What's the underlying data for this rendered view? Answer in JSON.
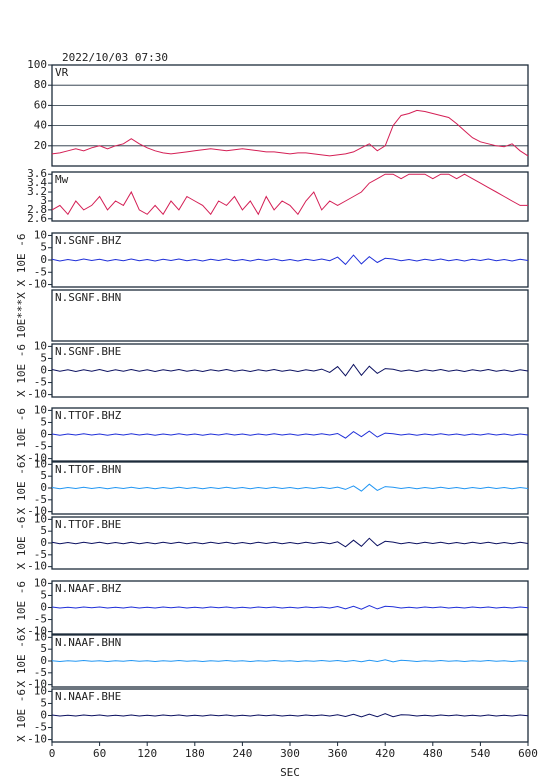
{
  "chart_data": {
    "type": "line",
    "title": "2022/10/03 07:30",
    "xlabel": "SEC",
    "xlim": [
      0,
      600
    ],
    "xticks": [
      0,
      60,
      120,
      180,
      240,
      300,
      360,
      420,
      480,
      540,
      600
    ],
    "x": [
      0,
      10,
      20,
      30,
      40,
      50,
      60,
      70,
      80,
      90,
      100,
      110,
      120,
      130,
      140,
      150,
      160,
      170,
      180,
      190,
      200,
      210,
      220,
      230,
      240,
      250,
      260,
      270,
      280,
      290,
      300,
      310,
      320,
      330,
      340,
      350,
      360,
      370,
      380,
      390,
      400,
      410,
      420,
      430,
      440,
      450,
      460,
      470,
      480,
      490,
      500,
      510,
      520,
      530,
      540,
      550,
      560,
      570,
      580,
      590,
      600
    ],
    "panels": [
      {
        "name": "VR",
        "color": "#d41f55",
        "ylim": [
          0,
          100
        ],
        "yticks": [
          20,
          40,
          60,
          80,
          100
        ],
        "grid": true,
        "values": [
          12,
          13,
          15,
          17,
          15,
          18,
          20,
          17,
          20,
          22,
          27,
          22,
          18,
          15,
          13,
          12,
          13,
          14,
          15,
          16,
          17,
          16,
          15,
          16,
          17,
          16,
          15,
          14,
          14,
          13,
          12,
          13,
          13,
          12,
          11,
          10,
          11,
          12,
          14,
          18,
          22,
          15,
          20,
          40,
          50,
          52,
          55,
          54,
          52,
          50,
          48,
          42,
          35,
          28,
          24,
          22,
          20,
          19,
          22,
          15,
          10
        ]
      },
      {
        "name": "Mw",
        "color": "#d41f55",
        "ylim": [
          2.55,
          3.65
        ],
        "yticks": [
          2.6,
          2.8,
          3.0,
          3.2,
          3.4,
          3.6
        ],
        "grid": false,
        "values": [
          2.8,
          2.9,
          2.7,
          3.0,
          2.8,
          2.9,
          3.1,
          2.8,
          3.0,
          2.9,
          3.2,
          2.8,
          2.7,
          2.9,
          2.7,
          3.0,
          2.8,
          3.1,
          3.0,
          2.9,
          2.7,
          3.0,
          2.9,
          3.1,
          2.8,
          3.0,
          2.7,
          3.1,
          2.8,
          3.0,
          2.9,
          2.7,
          3.0,
          3.2,
          2.8,
          3.0,
          2.9,
          3.0,
          3.1,
          3.2,
          3.4,
          3.5,
          3.6,
          3.6,
          3.5,
          3.6,
          3.6,
          3.6,
          3.5,
          3.6,
          3.6,
          3.5,
          3.6,
          3.5,
          3.4,
          3.3,
          3.2,
          3.1,
          3.0,
          2.9,
          2.9
        ]
      },
      {
        "name": "N.SGNF.BHZ",
        "ylabel": "X 10E -6",
        "color": "#1f2fd8",
        "ylim": [
          -11,
          11
        ],
        "yticks": [
          -10,
          -5,
          0,
          5,
          10
        ],
        "values": [
          0.3,
          -0.4,
          0.2,
          -0.3,
          0.4,
          -0.2,
          0.3,
          -0.4,
          0.2,
          -0.3,
          0.4,
          -0.3,
          0.2,
          -0.4,
          0.3,
          -0.2,
          0.4,
          -0.3,
          0.2,
          -0.4,
          0.3,
          -0.2,
          0.4,
          -0.3,
          0.2,
          -0.4,
          0.3,
          -0.2,
          0.4,
          -0.3,
          0.2,
          -0.4,
          0.3,
          -0.2,
          0.4,
          -0.3,
          1.2,
          -1.8,
          2.0,
          -1.6,
          1.4,
          -1.0,
          0.7,
          0.4,
          -0.3,
          0.2,
          -0.4,
          0.3,
          -0.2,
          0.4,
          -0.3,
          0.2,
          -0.4,
          0.3,
          -0.2,
          0.4,
          -0.3,
          0.2,
          -0.4,
          0.3,
          -0.2
        ]
      },
      {
        "name": "N.SGNF.BHN",
        "ylabel": "10E***X",
        "color": "#1e90ff",
        "ylim": [
          -11,
          11
        ],
        "yticks": []
      },
      {
        "name": "N.SGNF.BHE",
        "ylabel": "X 10E -6",
        "color": "#0b1060",
        "ylim": [
          -11,
          11
        ],
        "yticks": [
          -10,
          -5,
          0,
          5,
          10
        ],
        "values": [
          0.4,
          -0.3,
          0.3,
          -0.4,
          0.3,
          -0.3,
          0.4,
          -0.4,
          0.3,
          -0.3,
          0.4,
          -0.3,
          0.3,
          -0.4,
          0.3,
          -0.2,
          0.4,
          -0.3,
          0.2,
          -0.4,
          0.3,
          -0.2,
          0.4,
          -0.3,
          0.2,
          -0.4,
          0.3,
          -0.2,
          0.4,
          -0.3,
          0.2,
          -0.4,
          0.3,
          -0.2,
          0.6,
          -0.8,
          1.6,
          -2.2,
          2.5,
          -2.0,
          1.8,
          -1.2,
          0.8,
          0.5,
          -0.3,
          0.2,
          -0.4,
          0.3,
          -0.2,
          0.4,
          -0.3,
          0.2,
          -0.4,
          0.3,
          -0.2,
          0.4,
          -0.3,
          0.2,
          -0.4,
          0.3,
          -0.2
        ]
      },
      {
        "name": "N.TTOF.BHZ",
        "ylabel": "X 10E -6",
        "color": "#1f2fd8",
        "ylim": [
          -11,
          11
        ],
        "yticks": [
          -10,
          -5,
          0,
          5,
          10
        ],
        "values": [
          0.2,
          -0.3,
          0.2,
          -0.2,
          0.3,
          -0.2,
          0.2,
          -0.3,
          0.2,
          -0.2,
          0.3,
          -0.2,
          0.2,
          -0.3,
          0.2,
          -0.2,
          0.3,
          -0.2,
          0.2,
          -0.3,
          0.2,
          -0.2,
          0.3,
          -0.2,
          0.2,
          -0.3,
          0.2,
          -0.2,
          0.3,
          -0.2,
          0.2,
          -0.3,
          0.2,
          -0.2,
          0.3,
          -0.2,
          0.4,
          -1.5,
          1.2,
          -0.9,
          1.4,
          -1.1,
          0.6,
          0.3,
          -0.2,
          0.2,
          -0.3,
          0.2,
          -0.2,
          0.3,
          -0.2,
          0.2,
          -0.3,
          0.2,
          -0.2,
          0.3,
          -0.2,
          0.2,
          -0.3,
          0.2,
          -0.2
        ]
      },
      {
        "name": "N.TTOF.BHN",
        "ylabel": "X 10E -6",
        "color": "#2196f3",
        "ylim": [
          -11,
          11
        ],
        "yticks": [
          -10,
          -5,
          0,
          5,
          10
        ],
        "values": [
          0.2,
          -0.3,
          0.2,
          -0.2,
          0.3,
          -0.2,
          0.2,
          -0.3,
          0.2,
          -0.2,
          0.3,
          -0.2,
          0.2,
          -0.3,
          0.2,
          -0.2,
          0.3,
          -0.2,
          0.2,
          -0.3,
          0.2,
          -0.2,
          0.3,
          -0.2,
          0.2,
          -0.3,
          0.2,
          -0.2,
          0.3,
          -0.2,
          0.2,
          -0.3,
          0.2,
          -0.2,
          0.3,
          -0.2,
          0.4,
          -0.6,
          0.9,
          -1.3,
          1.6,
          -1.0,
          0.6,
          0.3,
          -0.2,
          0.2,
          -0.3,
          0.2,
          -0.2,
          0.3,
          -0.2,
          0.2,
          -0.3,
          0.2,
          -0.2,
          0.3,
          -0.2,
          0.2,
          -0.3,
          0.2,
          -0.2
        ]
      },
      {
        "name": "N.TTOF.BHE",
        "ylabel": "X 10E -6",
        "color": "#0b1060",
        "ylim": [
          -11,
          11
        ],
        "yticks": [
          -10,
          -5,
          0,
          5,
          10
        ],
        "values": [
          0.3,
          -0.3,
          0.2,
          -0.3,
          0.3,
          -0.2,
          0.3,
          -0.3,
          0.2,
          -0.3,
          0.3,
          -0.3,
          0.2,
          -0.3,
          0.3,
          -0.2,
          0.3,
          -0.3,
          0.2,
          -0.3,
          0.3,
          -0.2,
          0.3,
          -0.3,
          0.2,
          -0.3,
          0.3,
          -0.2,
          0.3,
          -0.3,
          0.2,
          -0.3,
          0.3,
          -0.2,
          0.3,
          -0.3,
          0.5,
          -1.6,
          1.2,
          -1.4,
          2.0,
          -1.2,
          0.7,
          0.4,
          -0.3,
          0.2,
          -0.3,
          0.3,
          -0.2,
          0.3,
          -0.3,
          0.2,
          -0.3,
          0.3,
          -0.2,
          0.3,
          -0.3,
          0.2,
          -0.3,
          0.3,
          -0.2
        ]
      },
      {
        "name": "N.NAAF.BHZ",
        "ylabel": "X 10E -6",
        "color": "#1f2fd8",
        "ylim": [
          -11,
          11
        ],
        "yticks": [
          -10,
          -5,
          0,
          5,
          10
        ],
        "values": [
          0.2,
          -0.2,
          0.1,
          -0.2,
          0.2,
          -0.1,
          0.2,
          -0.2,
          0.1,
          -0.2,
          0.2,
          -0.2,
          0.1,
          -0.2,
          0.2,
          -0.1,
          0.2,
          -0.2,
          0.1,
          -0.2,
          0.2,
          -0.1,
          0.2,
          -0.2,
          0.1,
          -0.2,
          0.2,
          -0.1,
          0.2,
          -0.2,
          0.1,
          -0.2,
          0.2,
          -0.1,
          0.2,
          -0.2,
          0.4,
          -0.6,
          0.5,
          -0.7,
          0.8,
          -0.6,
          0.5,
          0.3,
          -0.2,
          0.1,
          -0.2,
          0.2,
          -0.1,
          0.2,
          -0.2,
          0.1,
          -0.2,
          0.2,
          -0.1,
          0.2,
          -0.2,
          0.1,
          -0.2,
          0.2,
          -0.1
        ]
      },
      {
        "name": "N.NAAF.BHN",
        "ylabel": "X 10E -6",
        "color": "#2196f3",
        "ylim": [
          -11,
          11
        ],
        "yticks": [
          -10,
          -5,
          0,
          5,
          10
        ],
        "values": [
          0.1,
          -0.2,
          0.1,
          -0.1,
          0.2,
          -0.1,
          0.1,
          -0.2,
          0.1,
          -0.1,
          0.2,
          -0.1,
          0.1,
          -0.2,
          0.1,
          -0.1,
          0.2,
          -0.1,
          0.1,
          -0.2,
          0.1,
          -0.1,
          0.2,
          -0.1,
          0.1,
          -0.2,
          0.1,
          -0.1,
          0.2,
          -0.1,
          0.1,
          -0.2,
          0.1,
          -0.1,
          0.2,
          -0.1,
          0.2,
          -0.2,
          0.2,
          -0.3,
          0.3,
          -0.2,
          0.5,
          -0.4,
          0.3,
          0.1,
          -0.2,
          0.1,
          -0.1,
          0.2,
          -0.1,
          0.1,
          -0.2,
          0.1,
          -0.1,
          0.2,
          -0.1,
          0.1,
          -0.2,
          0.1,
          -0.1
        ]
      },
      {
        "name": "N.NAAF.BHE",
        "ylabel": "X 10E -6",
        "color": "#0b1060",
        "ylim": [
          -11,
          11
        ],
        "yticks": [
          -10,
          -5,
          0,
          5,
          10
        ],
        "values": [
          0.2,
          -0.2,
          0.1,
          -0.2,
          0.2,
          -0.1,
          0.2,
          -0.2,
          0.1,
          -0.2,
          0.2,
          -0.2,
          0.1,
          -0.2,
          0.2,
          -0.1,
          0.2,
          -0.2,
          0.1,
          -0.2,
          0.2,
          -0.1,
          0.2,
          -0.2,
          0.1,
          -0.2,
          0.2,
          -0.1,
          0.2,
          -0.2,
          0.1,
          -0.2,
          0.2,
          -0.1,
          0.2,
          -0.2,
          0.3,
          -0.4,
          0.5,
          -0.6,
          0.6,
          -0.5,
          0.8,
          -0.5,
          0.3,
          0.2,
          -0.2,
          0.1,
          -0.2,
          0.2,
          -0.1,
          0.2,
          -0.2,
          0.1,
          -0.2,
          0.2,
          -0.2,
          0.1,
          -0.2,
          0.2,
          -0.1
        ]
      }
    ]
  }
}
